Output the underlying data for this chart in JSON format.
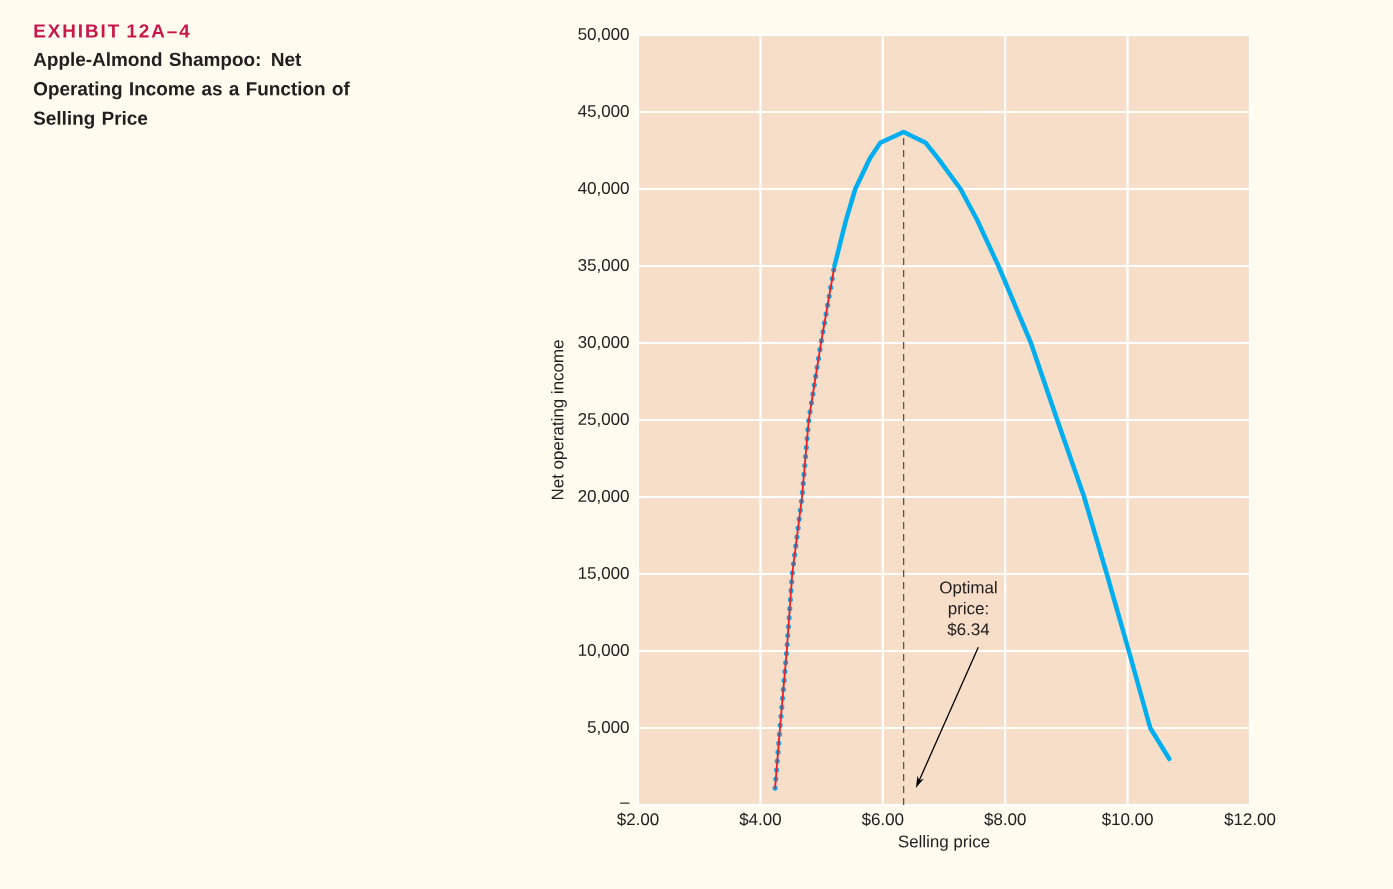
{
  "chart_data": {
    "type": "line",
    "title": "EXHIBIT 12A–4",
    "subtitle": "Apple-Almond Shampoo: Net Operating Income as a Function of Selling Price",
    "xlabel": "Selling price",
    "ylabel": "Net operating income",
    "series": [
      {
        "color": "#e8202a",
        "line_style": "solid",
        "x": [
          4.24,
          4.32,
          4.43,
          4.52,
          4.68,
          4.79,
          4.99,
          5.21
        ],
        "values": [
          1100,
          5000,
          10000,
          15000,
          20000,
          25000,
          30000,
          35000
        ]
      },
      {
        "color": "#1aa9e6",
        "line_style": "dotted",
        "x": [
          4.24,
          4.32,
          4.43,
          4.52,
          4.68,
          4.79,
          4.99,
          5.21
        ],
        "values": [
          1100,
          5000,
          10000,
          15000,
          20000,
          25000,
          30000,
          35000
        ]
      },
      {
        "color": "#00aeef",
        "line_style": "solid",
        "x": [
          5.21,
          5.4,
          5.55,
          5.79,
          5.96,
          6.34,
          6.7,
          6.9,
          7.27,
          7.54,
          7.89,
          8.42,
          8.85,
          9.29,
          9.66,
          10.02,
          10.37,
          10.68
        ],
        "values": [
          35000,
          38000,
          40000,
          42000,
          43000,
          43700,
          43000,
          42000,
          40000,
          38000,
          35000,
          30000,
          25000,
          20000,
          15000,
          10000,
          5000,
          3000
        ]
      }
    ],
    "xlim": [
      2,
      12
    ],
    "ylim": [
      0,
      50000
    ],
    "xticks": [
      {
        "value": 2,
        "label": "$2.00"
      },
      {
        "value": 4,
        "label": "$4.00"
      },
      {
        "value": 6,
        "label": "$6.00"
      },
      {
        "value": 8,
        "label": "$8.00"
      },
      {
        "value": 10,
        "label": "$10.00"
      },
      {
        "value": 12,
        "label": "$12.00"
      }
    ],
    "yticks": [
      {
        "value": 0,
        "label": "–"
      },
      {
        "value": 5000,
        "label": "5,000"
      },
      {
        "value": 10000,
        "label": "10,000"
      },
      {
        "value": 15000,
        "label": "15,000"
      },
      {
        "value": 20000,
        "label": "20,000"
      },
      {
        "value": 25000,
        "label": "25,000"
      },
      {
        "value": 30000,
        "label": "30,000"
      },
      {
        "value": 35000,
        "label": "35,000"
      },
      {
        "value": 40000,
        "label": "40,000"
      },
      {
        "value": 45000,
        "label": "45,000"
      },
      {
        "value": 50000,
        "label": "50,000"
      }
    ],
    "ref_lines": [
      {
        "axis": "x",
        "value": 6.34,
        "label": "Optimal price: $6.34",
        "color": "#555555",
        "line_style": "dashed"
      }
    ],
    "grid": true
  }
}
